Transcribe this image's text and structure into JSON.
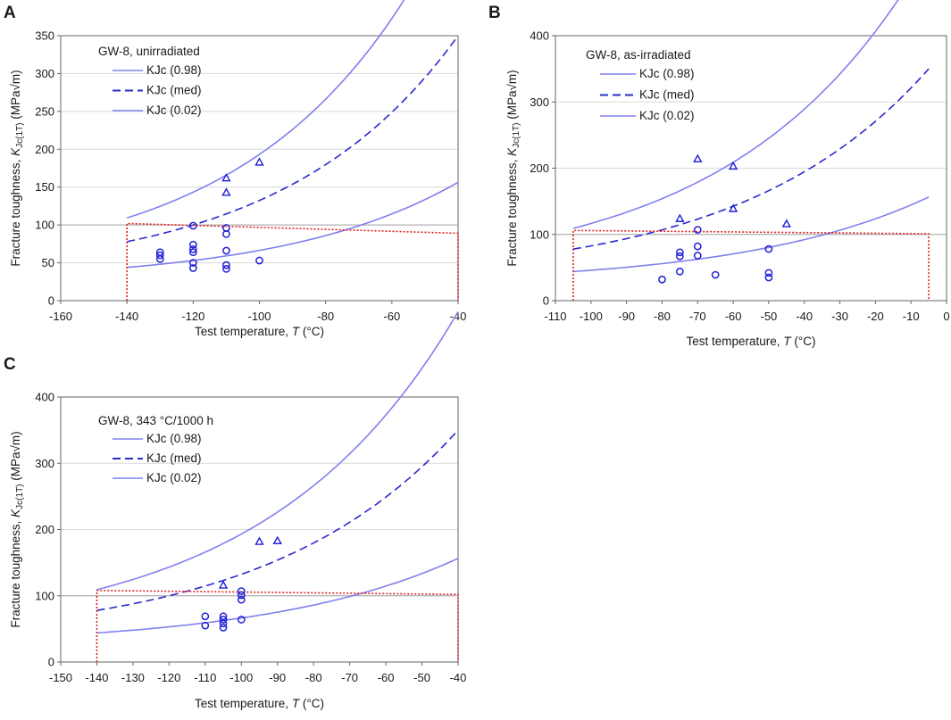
{
  "figure": {
    "colors": {
      "bound_curve": "#8080ee",
      "median_curve": "#2a2acc",
      "marker": "#1f1fd6",
      "box": "#e02020",
      "refline": "#a6a6a6"
    }
  },
  "chart_data": [
    {
      "panel": "A",
      "type": "scatter",
      "title": "GW-8, unirradiated",
      "xlabel_text": "Test temperature, ",
      "xlabel_var": "T",
      "xlabel_unit": " (°C)",
      "ylabel_text": "Fracture toughness, ",
      "ylabel_var": "K",
      "ylabel_sub": "Jc(1T)",
      "ylabel_unit": " (MPa√m)",
      "xlim": [
        -160,
        -40
      ],
      "ylim": [
        0,
        350
      ],
      "xticks": [
        -160,
        -140,
        -120,
        -100,
        -80,
        -60,
        -40
      ],
      "yticks": [
        0,
        50,
        100,
        150,
        200,
        250,
        300,
        350
      ],
      "T0": -120,
      "reference_line_y": 100,
      "legend": [
        "KJc (0.98)",
        "KJc (med)",
        "KJc (0.02)"
      ],
      "curves": [
        {
          "name": "KJc (0.98)",
          "style": "solid",
          "quantile": 0.98
        },
        {
          "name": "KJc (med)",
          "style": "dashed",
          "quantile": 0.5
        },
        {
          "name": "KJc (0.02)",
          "style": "solid",
          "quantile": 0.02
        }
      ],
      "validity_box": {
        "x_left": -140,
        "x_right": -40,
        "y_top_left": 102,
        "y_top_right": 89
      },
      "points_circle": [
        {
          "x": -130,
          "y": 64
        },
        {
          "x": -130,
          "y": 60
        },
        {
          "x": -130,
          "y": 55
        },
        {
          "x": -120,
          "y": 99
        },
        {
          "x": -120,
          "y": 74
        },
        {
          "x": -120,
          "y": 68
        },
        {
          "x": -120,
          "y": 64
        },
        {
          "x": -120,
          "y": 50
        },
        {
          "x": -120,
          "y": 43
        },
        {
          "x": -110,
          "y": 96
        },
        {
          "x": -110,
          "y": 88
        },
        {
          "x": -110,
          "y": 66
        },
        {
          "x": -110,
          "y": 47
        },
        {
          "x": -110,
          "y": 42
        },
        {
          "x": -100,
          "y": 53
        }
      ],
      "points_triangle": [
        {
          "x": -110,
          "y": 162
        },
        {
          "x": -110,
          "y": 143
        },
        {
          "x": -100,
          "y": 183
        }
      ]
    },
    {
      "panel": "B",
      "type": "scatter",
      "title": "GW-8, as-irradiated",
      "xlabel_text": "Test temperature, ",
      "xlabel_var": "T",
      "xlabel_unit": " (°C)",
      "ylabel_text": "Fracture toughness, ",
      "ylabel_var": "K",
      "ylabel_sub": "Jc(1T)",
      "ylabel_unit": " (MPa√m)",
      "xlim": [
        -110,
        0
      ],
      "ylim": [
        0,
        400
      ],
      "xticks": [
        -110,
        -100,
        -90,
        -80,
        -70,
        -60,
        -50,
        -40,
        -30,
        -20,
        -10,
        0
      ],
      "yticks": [
        0,
        100,
        200,
        300,
        400
      ],
      "T0": -85,
      "reference_line_y": 100,
      "legend": [
        "KJc (0.98)",
        "KJc (med)",
        "KJc (0.02)"
      ],
      "curves": [
        {
          "name": "KJc (0.98)",
          "style": "solid",
          "quantile": 0.98,
          "x_start": -105,
          "x_end": -5
        },
        {
          "name": "KJc (med)",
          "style": "dashed",
          "quantile": 0.5,
          "x_start": -105,
          "x_end": -5
        },
        {
          "name": "KJc (0.02)",
          "style": "solid",
          "quantile": 0.02,
          "x_start": -105,
          "x_end": -5
        }
      ],
      "validity_box": {
        "x_left": -105,
        "x_right": -5,
        "y_top_left": 106,
        "y_top_right": 101
      },
      "points_circle": [
        {
          "x": -80,
          "y": 32
        },
        {
          "x": -75,
          "y": 73
        },
        {
          "x": -75,
          "y": 67
        },
        {
          "x": -75,
          "y": 44
        },
        {
          "x": -70,
          "y": 107
        },
        {
          "x": -70,
          "y": 82
        },
        {
          "x": -70,
          "y": 68
        },
        {
          "x": -65,
          "y": 39
        },
        {
          "x": -50,
          "y": 78
        },
        {
          "x": -50,
          "y": 42
        },
        {
          "x": -50,
          "y": 35
        }
      ],
      "points_triangle": [
        {
          "x": -75,
          "y": 124
        },
        {
          "x": -70,
          "y": 214
        },
        {
          "x": -60,
          "y": 203
        },
        {
          "x": -60,
          "y": 139
        },
        {
          "x": -45,
          "y": 116
        }
      ]
    },
    {
      "panel": "C",
      "type": "scatter",
      "title": "GW-8, 343 °C/1000 h",
      "xlabel_text": "Test temperature, ",
      "xlabel_var": "T",
      "xlabel_unit": " (°C)",
      "ylabel_text": "Fracture toughness, ",
      "ylabel_var": "K",
      "ylabel_sub": "Jc(1T)",
      "ylabel_unit": " (MPa√m)",
      "xlim": [
        -150,
        -40
      ],
      "ylim": [
        0,
        400
      ],
      "xticks": [
        -150,
        -140,
        -130,
        -120,
        -110,
        -100,
        -90,
        -80,
        -70,
        -60,
        -50,
        -40
      ],
      "yticks": [
        0,
        100,
        200,
        300,
        400
      ],
      "T0": -120,
      "reference_line_y": 100,
      "legend": [
        "KJc (0.98)",
        "KJc (med)",
        "KJc (0.02)"
      ],
      "curves": [
        {
          "name": "KJc (0.98)",
          "style": "solid",
          "quantile": 0.98,
          "x_start": -140,
          "x_end": -40
        },
        {
          "name": "KJc (med)",
          "style": "dashed",
          "quantile": 0.5,
          "x_start": -140,
          "x_end": -40
        },
        {
          "name": "KJc (0.02)",
          "style": "solid",
          "quantile": 0.02,
          "x_start": -140,
          "x_end": -40
        }
      ],
      "validity_box": {
        "x_left": -140,
        "x_right": -40,
        "y_top_left": 108,
        "y_top_right": 102
      },
      "points_circle": [
        {
          "x": -110,
          "y": 69
        },
        {
          "x": -110,
          "y": 55
        },
        {
          "x": -105,
          "y": 69
        },
        {
          "x": -105,
          "y": 64
        },
        {
          "x": -105,
          "y": 58
        },
        {
          "x": -105,
          "y": 52
        },
        {
          "x": -100,
          "y": 107
        },
        {
          "x": -100,
          "y": 101
        },
        {
          "x": -100,
          "y": 94
        },
        {
          "x": -100,
          "y": 64
        }
      ],
      "points_triangle": [
        {
          "x": -105,
          "y": 116
        },
        {
          "x": -95,
          "y": 182
        },
        {
          "x": -90,
          "y": 183
        }
      ]
    }
  ]
}
